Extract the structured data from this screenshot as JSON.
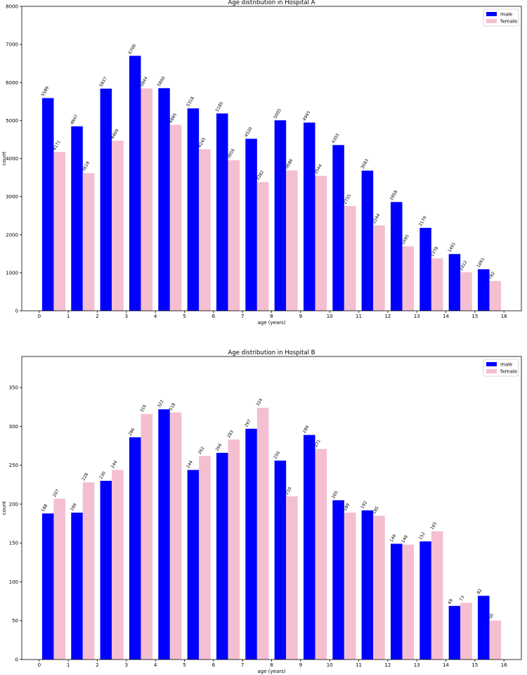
{
  "chart_data": [
    {
      "type": "bar",
      "title": "Age distribution in Hospital A",
      "xlabel": "age (years)",
      "ylabel": "count",
      "xlim": [
        -0.6,
        16.6
      ],
      "ylim": [
        0,
        8000
      ],
      "x_ticks": [
        0,
        1,
        2,
        3,
        4,
        5,
        6,
        7,
        8,
        9,
        10,
        11,
        12,
        13,
        14,
        15,
        16
      ],
      "y_ticks": [
        0,
        1000,
        2000,
        3000,
        4000,
        5000,
        6000,
        7000,
        8000
      ],
      "legend_position": "top-right",
      "grid": false,
      "series": [
        {
          "name": "male",
          "color": "#0000ff",
          "x": [
            0.3,
            1.3,
            2.3,
            3.3,
            4.3,
            5.3,
            6.3,
            7.3,
            8.3,
            9.3,
            10.3,
            11.3,
            12.3,
            13.3,
            14.3,
            15.3
          ],
          "values": [
            5589,
            4847,
            5837,
            6700,
            5850,
            5318,
            5185,
            4520,
            5005,
            4945,
            4355,
            3683,
            2858,
            2179,
            1491,
            1091
          ]
        },
        {
          "name": "female",
          "color": "#f4bfd0",
          "x": [
            0.7,
            1.7,
            2.7,
            3.7,
            4.7,
            5.7,
            6.7,
            7.7,
            8.7,
            9.7,
            10.7,
            11.7,
            12.7,
            13.7,
            14.7,
            15.7
          ],
          "values": [
            4171,
            3618,
            4469,
            5844,
            4885,
            4245,
            3956,
            3382,
            3686,
            3544,
            2755,
            2244,
            1695,
            1378,
            1012,
            782
          ]
        }
      ]
    },
    {
      "type": "bar",
      "title": "Age distribution in Hospital B",
      "xlabel": "age (years)",
      "ylabel": "count",
      "xlim": [
        -0.6,
        16.6
      ],
      "ylim": [
        0,
        390
      ],
      "x_ticks": [
        0,
        1,
        2,
        3,
        4,
        5,
        6,
        7,
        8,
        9,
        10,
        11,
        12,
        13,
        14,
        15,
        16
      ],
      "y_ticks": [
        0,
        50,
        100,
        150,
        200,
        250,
        300,
        350
      ],
      "legend_position": "top-right",
      "grid": false,
      "series": [
        {
          "name": "male",
          "color": "#0000ff",
          "x": [
            0.3,
            1.3,
            2.3,
            3.3,
            4.3,
            5.3,
            6.3,
            7.3,
            8.3,
            9.3,
            10.3,
            11.3,
            12.3,
            13.3,
            14.3,
            15.3
          ],
          "values": [
            188,
            189,
            230,
            286,
            322,
            244,
            266,
            297,
            256,
            289,
            205,
            192,
            149,
            152,
            69,
            82
          ]
        },
        {
          "name": "female",
          "color": "#f4bfd0",
          "x": [
            0.7,
            1.7,
            2.7,
            3.7,
            4.7,
            5.7,
            6.7,
            7.7,
            8.7,
            9.7,
            10.7,
            11.7,
            12.7,
            13.7,
            14.7,
            15.7
          ],
          "values": [
            207,
            228,
            244,
            316,
            318,
            262,
            283,
            324,
            210,
            271,
            189,
            185,
            148,
            165,
            73,
            50
          ]
        }
      ]
    }
  ]
}
